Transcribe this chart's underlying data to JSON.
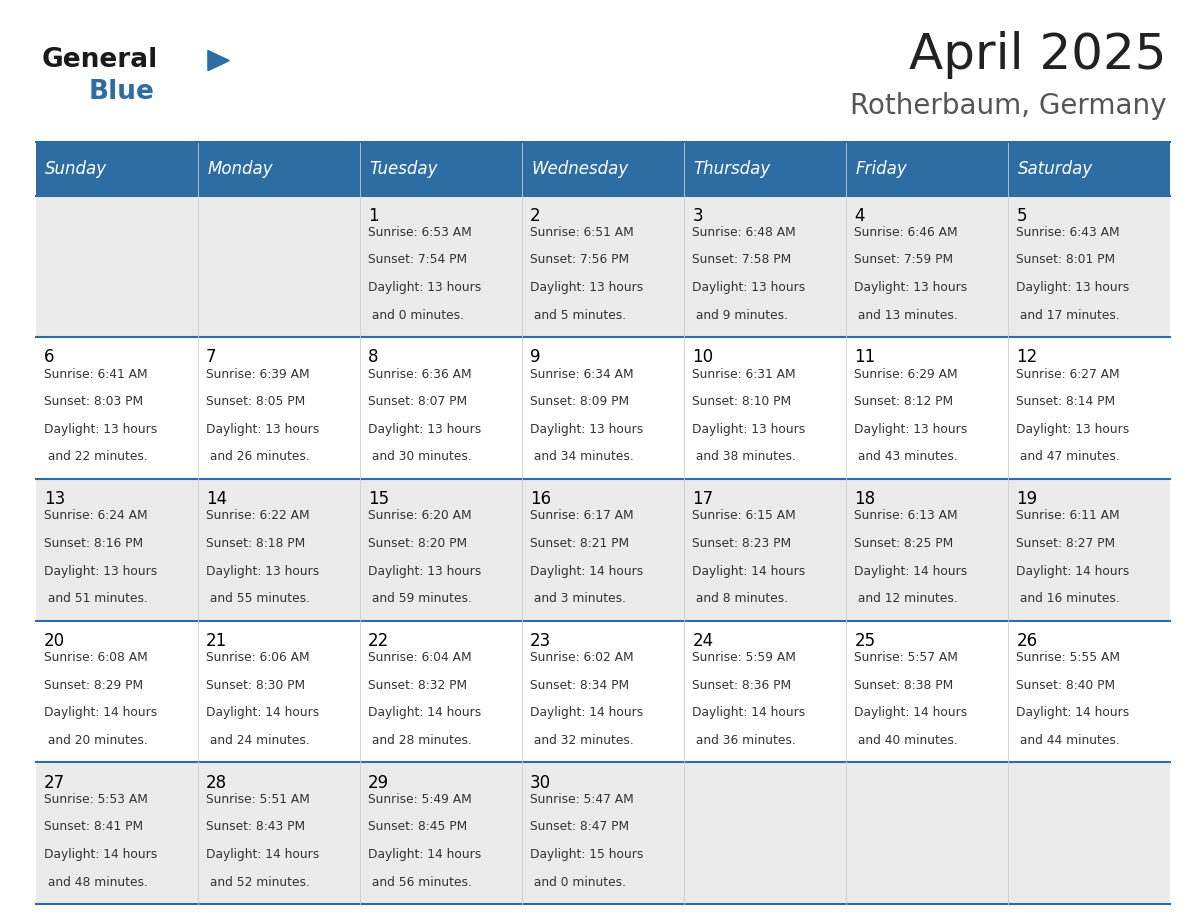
{
  "title": "April 2025",
  "subtitle": "Rotherbaum, Germany",
  "header_bg": "#2E6DA4",
  "header_text_color": "#FFFFFF",
  "cell_bg_odd": "#EBEBEB",
  "cell_bg_even": "#FFFFFF",
  "title_color": "#222222",
  "subtitle_color": "#555555",
  "day_number_color": "#000000",
  "cell_text_color": "#333333",
  "line_color": "#2E6DA4",
  "days_of_week": [
    "Sunday",
    "Monday",
    "Tuesday",
    "Wednesday",
    "Thursday",
    "Friday",
    "Saturday"
  ],
  "weeks": [
    [
      {
        "day": "",
        "sunrise": "",
        "sunset": "",
        "daylight": ""
      },
      {
        "day": "",
        "sunrise": "",
        "sunset": "",
        "daylight": ""
      },
      {
        "day": "1",
        "sunrise": "6:53 AM",
        "sunset": "7:54 PM",
        "daylight": "13 hours and 0 minutes."
      },
      {
        "day": "2",
        "sunrise": "6:51 AM",
        "sunset": "7:56 PM",
        "daylight": "13 hours and 5 minutes."
      },
      {
        "day": "3",
        "sunrise": "6:48 AM",
        "sunset": "7:58 PM",
        "daylight": "13 hours and 9 minutes."
      },
      {
        "day": "4",
        "sunrise": "6:46 AM",
        "sunset": "7:59 PM",
        "daylight": "13 hours and 13 minutes."
      },
      {
        "day": "5",
        "sunrise": "6:43 AM",
        "sunset": "8:01 PM",
        "daylight": "13 hours and 17 minutes."
      }
    ],
    [
      {
        "day": "6",
        "sunrise": "6:41 AM",
        "sunset": "8:03 PM",
        "daylight": "13 hours and 22 minutes."
      },
      {
        "day": "7",
        "sunrise": "6:39 AM",
        "sunset": "8:05 PM",
        "daylight": "13 hours and 26 minutes."
      },
      {
        "day": "8",
        "sunrise": "6:36 AM",
        "sunset": "8:07 PM",
        "daylight": "13 hours and 30 minutes."
      },
      {
        "day": "9",
        "sunrise": "6:34 AM",
        "sunset": "8:09 PM",
        "daylight": "13 hours and 34 minutes."
      },
      {
        "day": "10",
        "sunrise": "6:31 AM",
        "sunset": "8:10 PM",
        "daylight": "13 hours and 38 minutes."
      },
      {
        "day": "11",
        "sunrise": "6:29 AM",
        "sunset": "8:12 PM",
        "daylight": "13 hours and 43 minutes."
      },
      {
        "day": "12",
        "sunrise": "6:27 AM",
        "sunset": "8:14 PM",
        "daylight": "13 hours and 47 minutes."
      }
    ],
    [
      {
        "day": "13",
        "sunrise": "6:24 AM",
        "sunset": "8:16 PM",
        "daylight": "13 hours and 51 minutes."
      },
      {
        "day": "14",
        "sunrise": "6:22 AM",
        "sunset": "8:18 PM",
        "daylight": "13 hours and 55 minutes."
      },
      {
        "day": "15",
        "sunrise": "6:20 AM",
        "sunset": "8:20 PM",
        "daylight": "13 hours and 59 minutes."
      },
      {
        "day": "16",
        "sunrise": "6:17 AM",
        "sunset": "8:21 PM",
        "daylight": "14 hours and 3 minutes."
      },
      {
        "day": "17",
        "sunrise": "6:15 AM",
        "sunset": "8:23 PM",
        "daylight": "14 hours and 8 minutes."
      },
      {
        "day": "18",
        "sunrise": "6:13 AM",
        "sunset": "8:25 PM",
        "daylight": "14 hours and 12 minutes."
      },
      {
        "day": "19",
        "sunrise": "6:11 AM",
        "sunset": "8:27 PM",
        "daylight": "14 hours and 16 minutes."
      }
    ],
    [
      {
        "day": "20",
        "sunrise": "6:08 AM",
        "sunset": "8:29 PM",
        "daylight": "14 hours and 20 minutes."
      },
      {
        "day": "21",
        "sunrise": "6:06 AM",
        "sunset": "8:30 PM",
        "daylight": "14 hours and 24 minutes."
      },
      {
        "day": "22",
        "sunrise": "6:04 AM",
        "sunset": "8:32 PM",
        "daylight": "14 hours and 28 minutes."
      },
      {
        "day": "23",
        "sunrise": "6:02 AM",
        "sunset": "8:34 PM",
        "daylight": "14 hours and 32 minutes."
      },
      {
        "day": "24",
        "sunrise": "5:59 AM",
        "sunset": "8:36 PM",
        "daylight": "14 hours and 36 minutes."
      },
      {
        "day": "25",
        "sunrise": "5:57 AM",
        "sunset": "8:38 PM",
        "daylight": "14 hours and 40 minutes."
      },
      {
        "day": "26",
        "sunrise": "5:55 AM",
        "sunset": "8:40 PM",
        "daylight": "14 hours and 44 minutes."
      }
    ],
    [
      {
        "day": "27",
        "sunrise": "5:53 AM",
        "sunset": "8:41 PM",
        "daylight": "14 hours and 48 minutes."
      },
      {
        "day": "28",
        "sunrise": "5:51 AM",
        "sunset": "8:43 PM",
        "daylight": "14 hours and 52 minutes."
      },
      {
        "day": "29",
        "sunrise": "5:49 AM",
        "sunset": "8:45 PM",
        "daylight": "14 hours and 56 minutes."
      },
      {
        "day": "30",
        "sunrise": "5:47 AM",
        "sunset": "8:47 PM",
        "daylight": "15 hours and 0 minutes."
      },
      {
        "day": "",
        "sunrise": "",
        "sunset": "",
        "daylight": ""
      },
      {
        "day": "",
        "sunrise": "",
        "sunset": "",
        "daylight": ""
      },
      {
        "day": "",
        "sunrise": "",
        "sunset": "",
        "daylight": ""
      }
    ]
  ],
  "logo_general_color": "#1a1a1a",
  "logo_blue_color": "#2E6DA4",
  "figsize": [
    11.88,
    9.18
  ],
  "dpi": 100
}
